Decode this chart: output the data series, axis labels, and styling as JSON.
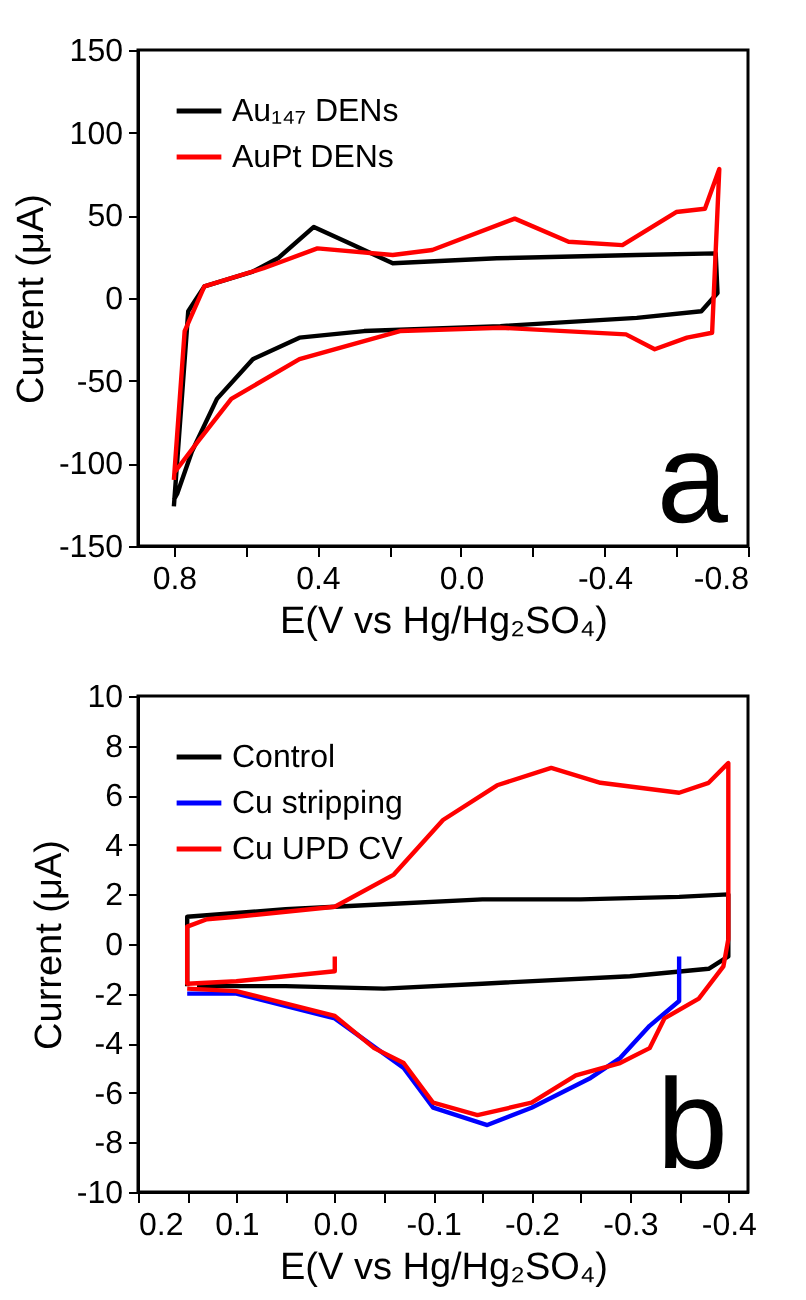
{
  "chart_data": [
    {
      "type": "line",
      "xlabel": "E(V vs Hg/Hg₂SO₄)",
      "ylabel": "Current (μA)",
      "annotations": [
        "a"
      ],
      "legend": "top left",
      "xlim": [
        0.9,
        -0.8
      ],
      "xticks": [
        0.8,
        {
          "value": 0.6,
          "label": null
        },
        0.4,
        {
          "value": 0.2,
          "label": null
        },
        {
          "value": 0,
          "label": "0.0"
        },
        {
          "value": -0.2,
          "label": null
        },
        -0.4,
        {
          "value": -0.6,
          "label": null
        },
        -0.8
      ],
      "ylim": [
        -150,
        150
      ],
      "yticks": [
        -150,
        -100,
        -50,
        0,
        50,
        100,
        150
      ],
      "series": [
        {
          "name": "Au₁₄₇ DENs",
          "color": "#000000",
          "x": [
            0.8,
            0.76,
            0.715,
            0.58,
            0.51,
            0.41,
            0.3,
            0.19,
            -0.1,
            -0.49,
            -0.71,
            -0.715,
            -0.67,
            -0.49,
            -0.11,
            0.27,
            0.45,
            0.58,
            0.68,
            0.75,
            0.79,
            0.8
          ],
          "values": [
            -126,
            -8,
            7,
            16,
            24,
            43,
            32,
            21,
            24,
            26,
            27,
            3,
            -8,
            -12,
            -17,
            -20,
            -24,
            -37,
            -61,
            -93,
            -118,
            -122
          ]
        },
        {
          "name": "AuPt DENs",
          "color": "#ff0000",
          "x": [
            0.8,
            0.77,
            0.715,
            0.55,
            0.4,
            0.19,
            0.08,
            -0.15,
            -0.3,
            -0.45,
            -0.6,
            -0.68,
            -0.72,
            -0.7,
            -0.63,
            -0.54,
            -0.46,
            -0.11,
            0.17,
            0.45,
            0.64,
            0.73,
            0.8
          ],
          "values": [
            -110,
            -20,
            7,
            18,
            30,
            26,
            29,
            48,
            34,
            32,
            52,
            54,
            78,
            -21,
            -24,
            -31,
            -22,
            -18,
            -20,
            -37,
            -61,
            -86,
            -106
          ]
        }
      ]
    },
    {
      "type": "line",
      "xlabel": "E(V vs Hg/Hg₂SO₄)",
      "ylabel": "Current (μA)",
      "annotations": [
        "b"
      ],
      "legend": "top left",
      "xlim": [
        0.2,
        -0.42
      ],
      "xticks": [
        0.2,
        {
          "value": 0.15,
          "label": null
        },
        0.1,
        {
          "value": 0.05,
          "label": null
        },
        {
          "value": 0,
          "label": "0.0"
        },
        {
          "value": -0.05,
          "label": null
        },
        -0.1,
        {
          "value": -0.15,
          "label": null
        },
        -0.2,
        {
          "value": -0.25,
          "label": null
        },
        -0.3,
        {
          "value": -0.35,
          "label": null
        },
        -0.4
      ],
      "ylim": [
        -10,
        10
      ],
      "yticks": [
        -10,
        -8,
        -6,
        -4,
        -2,
        0,
        2,
        4,
        6,
        8,
        10
      ],
      "series": [
        {
          "name": "Control",
          "color": "#000000",
          "x": [
            0.15,
            0.15,
            0.05,
            -0.05,
            -0.15,
            -0.25,
            -0.35,
            -0.4,
            -0.4,
            -0.38,
            -0.3,
            -0.15,
            -0.05,
            0.05,
            0.14
          ],
          "values": [
            -1.7,
            1.1,
            1.4,
            1.6,
            1.8,
            1.8,
            1.9,
            2,
            -0.5,
            -1,
            -1.3,
            -1.6,
            -1.8,
            -1.7,
            -1.7
          ]
        },
        {
          "name": "Cu stripping",
          "color": "#0000ff",
          "x": [
            -0.35,
            -0.35,
            -0.32,
            -0.29,
            -0.26,
            -0.2,
            -0.155,
            -0.1,
            -0.07,
            0,
            0.1,
            0.15
          ],
          "values": [
            -0.5,
            -2.3,
            -3.3,
            -4.6,
            -5.4,
            -6.6,
            -7.3,
            -6.6,
            -5,
            -3,
            -2,
            -2
          ]
        },
        {
          "name": "Cu UPD CV",
          "color": "#ff0000",
          "x": [
            0,
            0,
            0.05,
            0.1,
            0.15,
            0.15,
            0.13,
            0.1,
            0,
            -0.06,
            -0.11,
            -0.165,
            -0.22,
            -0.27,
            -0.35,
            -0.38,
            -0.4,
            -0.4,
            -0.395,
            -0.37,
            -0.335,
            -0.32,
            -0.29,
            -0.245,
            -0.2,
            -0.145,
            -0.1,
            -0.07,
            -0.04,
            0,
            0.1,
            0.15
          ],
          "values": [
            -0.5,
            -1.1,
            -1.3,
            -1.5,
            -1.6,
            0.7,
            1,
            1.1,
            1.5,
            2.8,
            5,
            6.4,
            7.1,
            6.5,
            6.1,
            6.5,
            7.3,
            0.2,
            -0.9,
            -2.2,
            -3,
            -4.2,
            -4.8,
            -5.3,
            -6.4,
            -6.9,
            -6.4,
            -4.8,
            -4.2,
            -2.9,
            -1.9,
            -1.8
          ]
        }
      ]
    }
  ]
}
